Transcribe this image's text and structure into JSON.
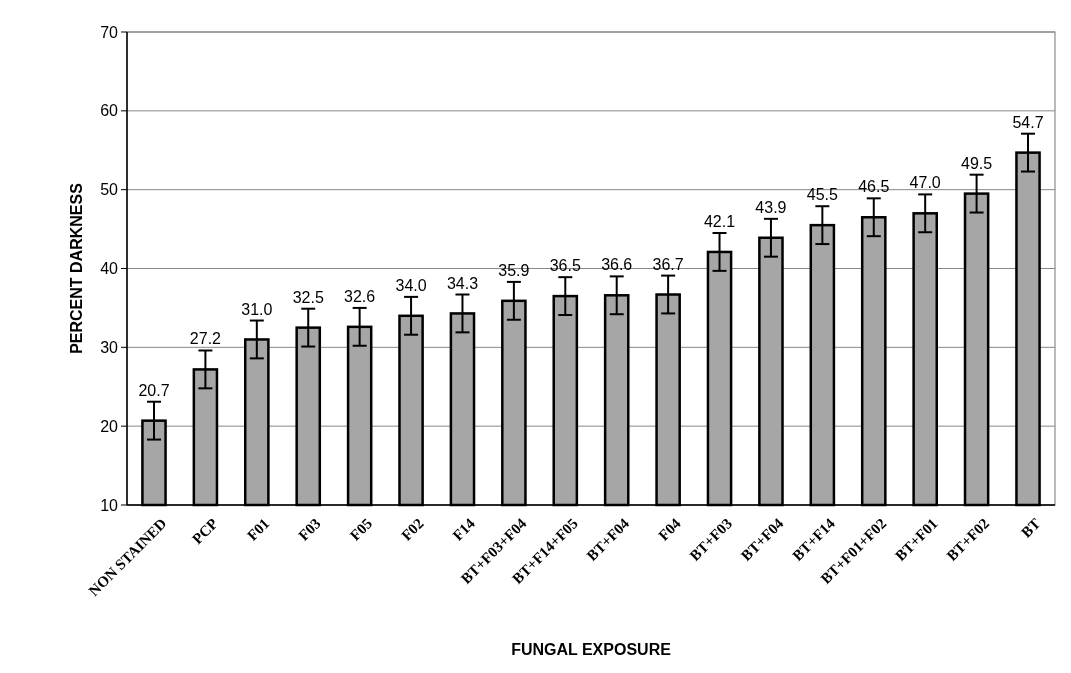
{
  "chart_data": {
    "type": "bar",
    "xlabel": "FUNGAL EXPOSURE",
    "ylabel": "PERCENT DARKNESS",
    "categories": [
      "NON STAINED",
      "PCP",
      "F01",
      "F03",
      "F05",
      "F02",
      "F14",
      "BT+F03+F04",
      "BT+F14+F05",
      "BT+F04",
      "F04",
      "BT+F03",
      "BT+F04",
      "BT+F14",
      "BT+F01+F02",
      "BT+F01",
      "BT+F02",
      "BT"
    ],
    "values": [
      20.7,
      27.2,
      31.0,
      32.5,
      32.6,
      34.0,
      34.3,
      35.9,
      36.5,
      36.6,
      36.7,
      42.1,
      43.9,
      45.5,
      46.5,
      47.0,
      49.5,
      54.7
    ],
    "value_labels": [
      "20.7",
      "27.2",
      "31.0",
      "32.5",
      "32.6",
      "34.0",
      "34.3",
      "35.9",
      "36.5",
      "36.6",
      "36.7",
      "42.1",
      "43.9",
      "45.5",
      "46.5",
      "47.0",
      "49.5",
      "54.7"
    ],
    "errors": [
      2.4,
      2.4,
      2.4,
      2.4,
      2.4,
      2.4,
      2.4,
      2.4,
      2.4,
      2.4,
      2.4,
      2.4,
      2.4,
      2.4,
      2.4,
      2.4,
      2.4,
      2.4
    ],
    "color": "#a6a6a6",
    "ylim": [
      10,
      70
    ],
    "yticks": [
      10,
      20,
      30,
      40,
      50,
      60,
      70
    ],
    "grid": "y"
  }
}
